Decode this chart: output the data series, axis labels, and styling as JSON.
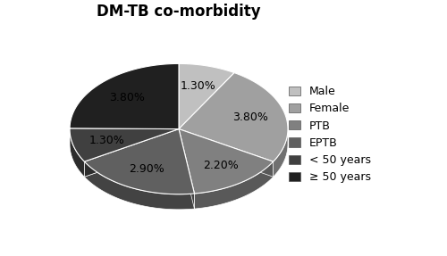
{
  "title": "DM-TB co-morbidity",
  "labels": [
    "Male",
    "Female",
    "PTB",
    "EPTB",
    "< 50 years",
    "≥ 50 years"
  ],
  "values": [
    1.3,
    3.8,
    2.2,
    2.9,
    1.3,
    3.8
  ],
  "colors": [
    "#c0c0c0",
    "#a0a0a0",
    "#808080",
    "#606060",
    "#404040",
    "#202020"
  ],
  "edge_colors": [
    "#888888",
    "#707070",
    "#505050",
    "#383838",
    "#202020",
    "#101010"
  ],
  "pct_labels": [
    "1.30%",
    "3.80%",
    "2.20%",
    "2.90%",
    "1.30%",
    "3.80%"
  ],
  "title_fontsize": 12,
  "label_fontsize": 9,
  "legend_fontsize": 9,
  "startangle": 90,
  "depth": 0.12,
  "background_color": "#ffffff"
}
